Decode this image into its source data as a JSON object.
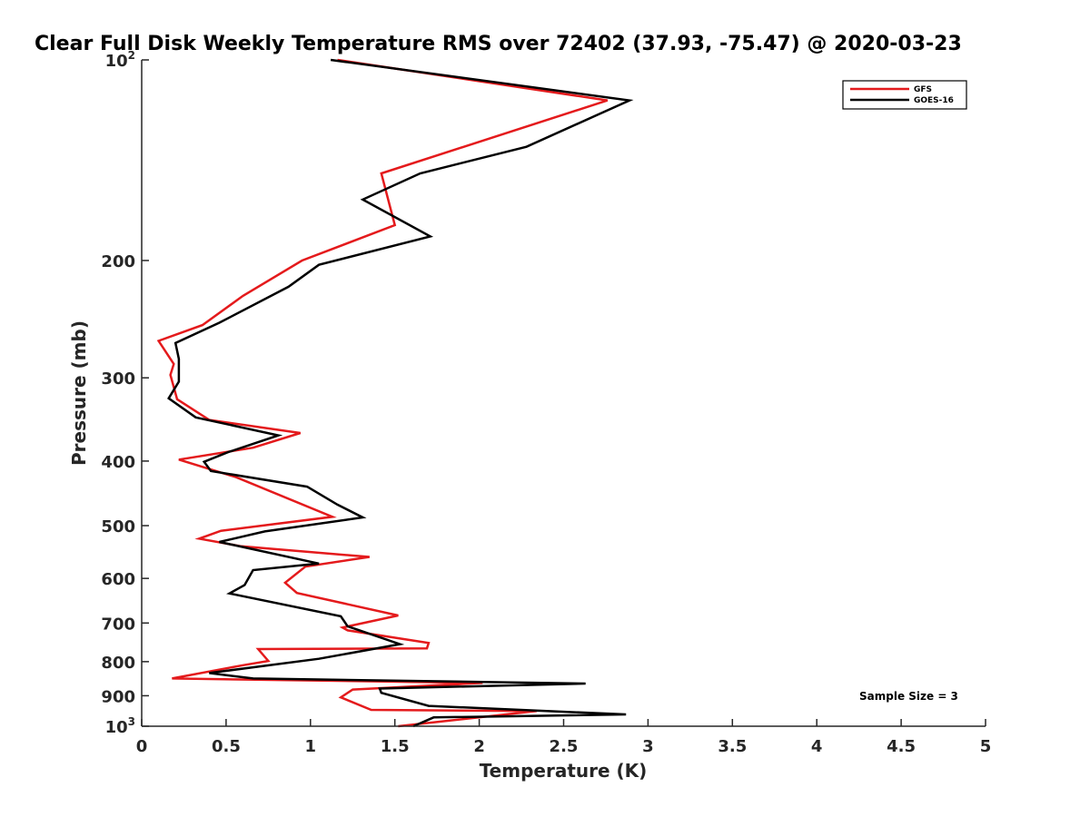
{
  "chart_data": {
    "type": "line",
    "title": "Clear Full Disk Weekly Temperature RMS over 72402 (37.93, -75.47) @ 2020-03-23",
    "xlabel": "Temperature (K)",
    "ylabel": "Pressure (mb)",
    "xlim": [
      0,
      5
    ],
    "ylim": [
      100,
      1000
    ],
    "y_scale": "log",
    "y_reversed": true,
    "x_ticks": [
      {
        "value": 0,
        "label": "0"
      },
      {
        "value": 0.5,
        "label": "0.5"
      },
      {
        "value": 1,
        "label": "1"
      },
      {
        "value": 1.5,
        "label": "1.5"
      },
      {
        "value": 2,
        "label": "2"
      },
      {
        "value": 2.5,
        "label": "2.5"
      },
      {
        "value": 3,
        "label": "3"
      },
      {
        "value": 3.5,
        "label": "3.5"
      },
      {
        "value": 4,
        "label": "4"
      },
      {
        "value": 4.5,
        "label": "4.5"
      },
      {
        "value": 5,
        "label": "5"
      }
    ],
    "y_ticks": [
      {
        "value": 100,
        "base": "10",
        "exp": "2"
      },
      {
        "value": 200,
        "label": "200"
      },
      {
        "value": 300,
        "label": "300"
      },
      {
        "value": 400,
        "label": "400"
      },
      {
        "value": 500,
        "label": "500"
      },
      {
        "value": 600,
        "label": "600"
      },
      {
        "value": 700,
        "label": "700"
      },
      {
        "value": 800,
        "label": "800"
      },
      {
        "value": 900,
        "label": "900"
      },
      {
        "value": 1000,
        "base": "10",
        "exp": "3"
      }
    ],
    "grid": false,
    "legend_position": "top-right",
    "annotation": "Sample Size = 3",
    "series": [
      {
        "name": "GFS",
        "color": "#e41a1c",
        "points": [
          [
            1.16,
            100
          ],
          [
            2.76,
            115
          ],
          [
            1.42,
            148
          ],
          [
            1.5,
            177
          ],
          [
            0.95,
            200
          ],
          [
            0.6,
            226
          ],
          [
            0.36,
            250
          ],
          [
            0.1,
            264
          ],
          [
            0.19,
            286
          ],
          [
            0.17,
            297
          ],
          [
            0.21,
            323
          ],
          [
            0.4,
            347
          ],
          [
            0.94,
            363
          ],
          [
            0.66,
            382
          ],
          [
            0.22,
            398
          ],
          [
            0.56,
            423
          ],
          [
            1.13,
            485
          ],
          [
            0.47,
            509
          ],
          [
            0.34,
            523
          ],
          [
            0.59,
            537
          ],
          [
            1.35,
            557
          ],
          [
            0.97,
            576
          ],
          [
            0.85,
            609
          ],
          [
            0.92,
            631
          ],
          [
            1.52,
            682
          ],
          [
            1.19,
            711
          ],
          [
            1.22,
            718
          ],
          [
            1.7,
            750
          ],
          [
            1.69,
            764
          ],
          [
            0.69,
            766
          ],
          [
            0.75,
            798
          ],
          [
            0.6,
            810
          ],
          [
            0.18,
            848
          ],
          [
            2.02,
            861
          ],
          [
            1.25,
            881
          ],
          [
            1.18,
            905
          ],
          [
            1.36,
            945
          ],
          [
            2.34,
            949
          ],
          [
            1.52,
            1000
          ]
        ]
      },
      {
        "name": "GOES-16",
        "color": "#000000",
        "points": [
          [
            1.12,
            100
          ],
          [
            2.89,
            115
          ],
          [
            2.28,
            135
          ],
          [
            1.65,
            148
          ],
          [
            1.31,
            162
          ],
          [
            1.71,
            184
          ],
          [
            1.05,
            203
          ],
          [
            0.87,
            219
          ],
          [
            0.46,
            248
          ],
          [
            0.2,
            266
          ],
          [
            0.22,
            281
          ],
          [
            0.22,
            304
          ],
          [
            0.16,
            322
          ],
          [
            0.32,
            344
          ],
          [
            0.81,
            366
          ],
          [
            0.51,
            388
          ],
          [
            0.37,
            401
          ],
          [
            0.41,
            414
          ],
          [
            0.98,
            437
          ],
          [
            1.16,
            465
          ],
          [
            1.31,
            486
          ],
          [
            0.73,
            510
          ],
          [
            0.46,
            529
          ],
          [
            1.05,
            570
          ],
          [
            0.66,
            583
          ],
          [
            0.61,
            614
          ],
          [
            0.52,
            632
          ],
          [
            1.18,
            684
          ],
          [
            1.22,
            708
          ],
          [
            1.53,
            753
          ],
          [
            1.05,
            792
          ],
          [
            0.4,
            832
          ],
          [
            0.66,
            848
          ],
          [
            2.63,
            863
          ],
          [
            1.41,
            878
          ],
          [
            1.42,
            891
          ],
          [
            1.7,
            932
          ],
          [
            2.87,
            960
          ],
          [
            1.73,
            970
          ],
          [
            1.61,
            1000
          ]
        ]
      }
    ]
  }
}
